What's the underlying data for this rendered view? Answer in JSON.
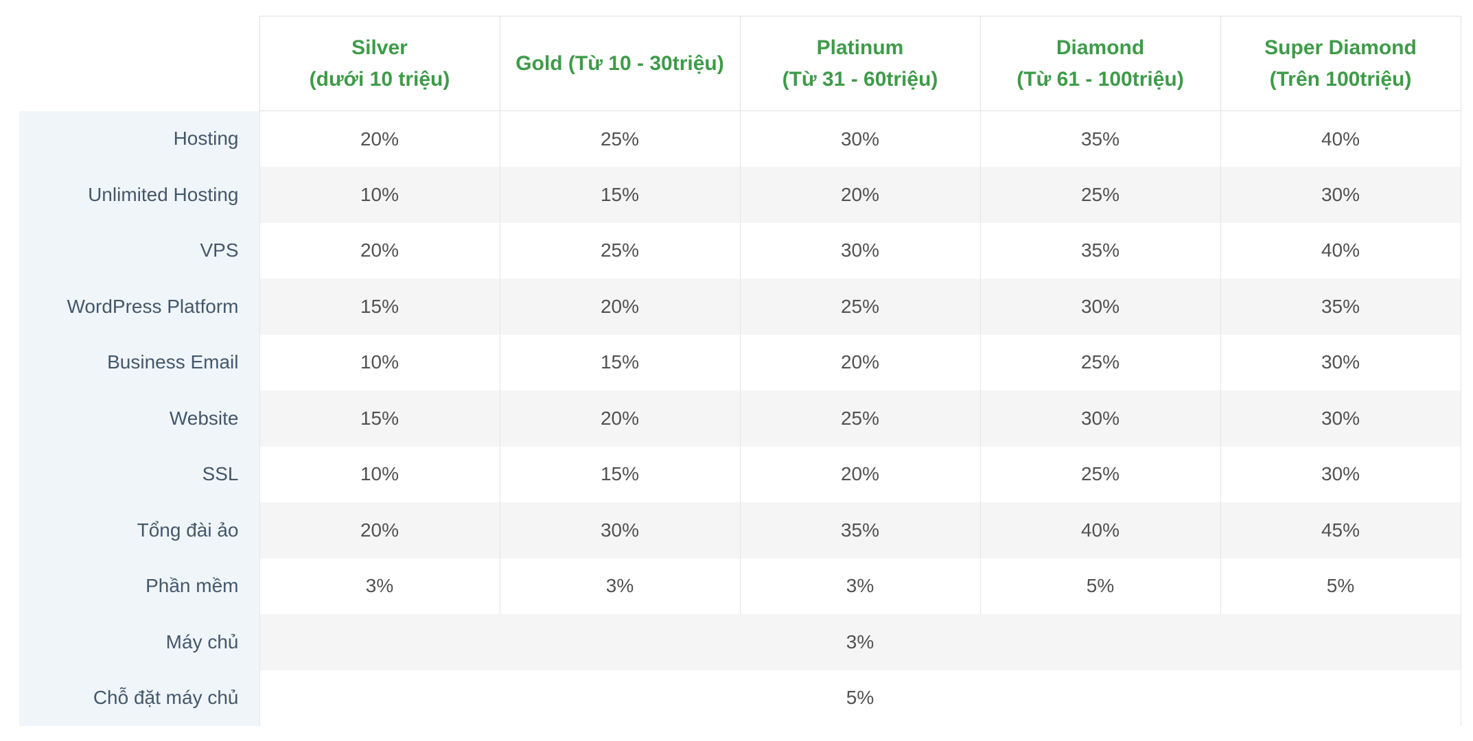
{
  "colors": {
    "accent_green": "#3e9b49",
    "label_text": "#44576a",
    "value_text": "#515151",
    "label_bg": "#f0f5f9",
    "stripe_bg": "#f5f5f5",
    "border": "#e0e0e0",
    "cell_border": "#e4e4e4"
  },
  "table": {
    "tiers": [
      {
        "line1": "Silver",
        "line2": "(dưới 10 triệu)"
      },
      {
        "line1": "Gold (Từ 10 - 30triệu)",
        "line2": ""
      },
      {
        "line1": "Platinum",
        "line2": "(Từ 31 - 60triệu)"
      },
      {
        "line1": "Diamond",
        "line2": "(Từ 61 - 100triệu)"
      },
      {
        "line1": "Super Diamond",
        "line2": "(Trên 100triệu)"
      }
    ],
    "rows": [
      {
        "label": "Hosting",
        "values": [
          "20%",
          "25%",
          "30%",
          "35%",
          "40%"
        ]
      },
      {
        "label": "Unlimited Hosting",
        "values": [
          "10%",
          "15%",
          "20%",
          "25%",
          "30%"
        ]
      },
      {
        "label": "VPS",
        "values": [
          "20%",
          "25%",
          "30%",
          "35%",
          "40%"
        ]
      },
      {
        "label": "WordPress Platform",
        "values": [
          "15%",
          "20%",
          "25%",
          "30%",
          "35%"
        ]
      },
      {
        "label": "Business Email",
        "values": [
          "10%",
          "15%",
          "20%",
          "25%",
          "30%"
        ]
      },
      {
        "label": "Website",
        "values": [
          "15%",
          "20%",
          "25%",
          "30%",
          "30%"
        ]
      },
      {
        "label": "SSL",
        "values": [
          "10%",
          "15%",
          "20%",
          "25%",
          "30%"
        ]
      },
      {
        "label": "Tổng đài ảo",
        "values": [
          "20%",
          "30%",
          "35%",
          "40%",
          "45%"
        ]
      },
      {
        "label": "Phần mềm",
        "values": [
          "3%",
          "3%",
          "3%",
          "5%",
          "5%"
        ]
      },
      {
        "label": "Máy chủ",
        "merged_value": "3%"
      },
      {
        "label": "Chỗ đặt máy chủ",
        "merged_value": "5%"
      }
    ]
  },
  "chart_data": {
    "type": "table",
    "title": "",
    "columns": [
      "",
      "Silver (dưới 10 triệu)",
      "Gold (Từ 10 - 30triệu)",
      "Platinum (Từ 31 - 60triệu)",
      "Diamond (Từ 61 - 100triệu)",
      "Super Diamond (Trên 100triệu)"
    ],
    "rows": [
      [
        "Hosting",
        "20%",
        "25%",
        "30%",
        "35%",
        "40%"
      ],
      [
        "Unlimited Hosting",
        "10%",
        "15%",
        "20%",
        "25%",
        "30%"
      ],
      [
        "VPS",
        "20%",
        "25%",
        "30%",
        "35%",
        "40%"
      ],
      [
        "WordPress Platform",
        "15%",
        "20%",
        "25%",
        "30%",
        "35%"
      ],
      [
        "Business Email",
        "10%",
        "15%",
        "20%",
        "25%",
        "30%"
      ],
      [
        "Website",
        "15%",
        "20%",
        "25%",
        "30%",
        "30%"
      ],
      [
        "SSL",
        "10%",
        "15%",
        "20%",
        "25%",
        "30%"
      ],
      [
        "Tổng đài ảo",
        "20%",
        "30%",
        "35%",
        "40%",
        "45%"
      ],
      [
        "Phần mềm",
        "3%",
        "3%",
        "3%",
        "5%",
        "5%"
      ],
      [
        "Máy chủ",
        "3% (spans all tiers)"
      ],
      [
        "Chỗ đặt máy chủ",
        "5% (spans all tiers)"
      ]
    ],
    "layout_hints": {
      "header_text_color": "#3e9b49",
      "label_column_background": "#f0f5f9",
      "row_striping": "white / #f5f5f5 alternating",
      "grid": "vertical cell borders only in data area"
    }
  }
}
